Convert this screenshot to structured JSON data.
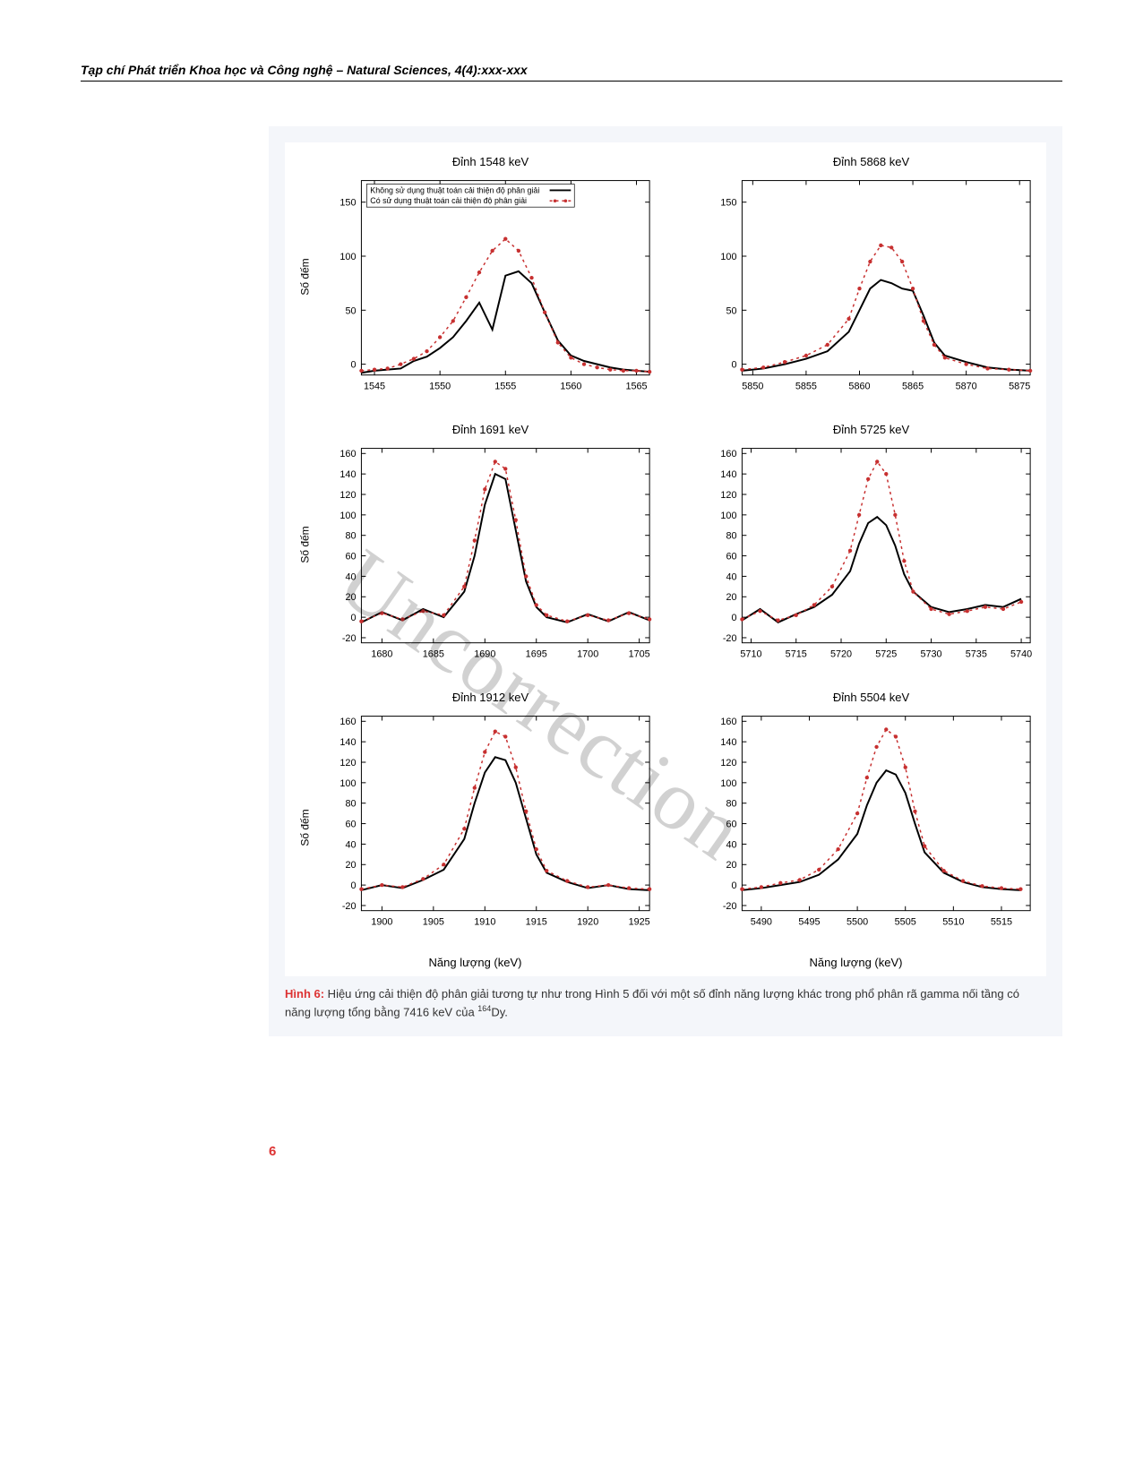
{
  "journal_header": "Tạp chí Phát triển Khoa học và Công nghệ – Natural Sciences, 4(4):xxx-xxx",
  "watermark": "Uncorrection",
  "page_number": "6",
  "shared": {
    "ylabel": "Số đếm",
    "xlabel": "Năng lượng (keV)",
    "line_solid_color": "#000000",
    "line_dashed_color": "#c73030",
    "background_color": "#ffffff",
    "figure_bg": "#f4f6fa",
    "solid_stroke_width": 2,
    "dashed_stroke_width": 1.5,
    "dash_pattern": "3,4",
    "marker_size": 2.2,
    "tick_fontsize": 11,
    "label_fontsize": 13,
    "title_fontsize": 13,
    "legend": {
      "line1": "Không sử dụng thuật toán cải thiện độ phân giải",
      "line2": "Có sử dụng thuật toán cải thiện độ phân giải"
    }
  },
  "subplots": [
    {
      "title": "Đỉnh 1548 keV",
      "show_legend": true,
      "show_ylabel": true,
      "show_xlabel": false,
      "xlim": [
        1544,
        1566
      ],
      "ylim": [
        -10,
        170
      ],
      "yticks": [
        0,
        50,
        100,
        150
      ],
      "xticks": [
        1545,
        1550,
        1555,
        1560,
        1565
      ],
      "solid": {
        "x": [
          1544,
          1545,
          1546,
          1547,
          1548,
          1549,
          1550,
          1551,
          1552,
          1553,
          1554,
          1555,
          1556,
          1557,
          1558,
          1559,
          1560,
          1561,
          1562,
          1563,
          1564,
          1565,
          1566
        ],
        "y": [
          -8,
          -6,
          -5,
          -4,
          3,
          7,
          15,
          25,
          40,
          57,
          32,
          82,
          86,
          75,
          48,
          22,
          8,
          3,
          0,
          -3,
          -5,
          -6,
          -7
        ]
      },
      "dashed": {
        "x": [
          1544,
          1545,
          1546,
          1547,
          1548,
          1549,
          1550,
          1551,
          1552,
          1553,
          1554,
          1555,
          1556,
          1557,
          1558,
          1559,
          1560,
          1561,
          1562,
          1563,
          1564,
          1565,
          1566
        ],
        "y": [
          -6,
          -5,
          -4,
          0,
          5,
          12,
          25,
          40,
          62,
          85,
          105,
          116,
          105,
          80,
          48,
          20,
          6,
          0,
          -3,
          -5,
          -6,
          -6,
          -7
        ]
      }
    },
    {
      "title": "Đỉnh 5868 keV",
      "show_legend": false,
      "show_ylabel": false,
      "show_xlabel": false,
      "xlim": [
        5849,
        5876
      ],
      "ylim": [
        -10,
        170
      ],
      "yticks": [
        0,
        50,
        100,
        150
      ],
      "xticks": [
        5850,
        5855,
        5860,
        5865,
        5870,
        5875
      ],
      "solid": {
        "x": [
          5849,
          5851,
          5853,
          5855,
          5857,
          5859,
          5860,
          5861,
          5862,
          5863,
          5864,
          5865,
          5866,
          5867,
          5868,
          5870,
          5872,
          5874,
          5876
        ],
        "y": [
          -6,
          -4,
          0,
          5,
          12,
          30,
          50,
          70,
          78,
          75,
          70,
          68,
          45,
          20,
          8,
          2,
          -3,
          -5,
          -6
        ]
      },
      "dashed": {
        "x": [
          5849,
          5851,
          5853,
          5855,
          5857,
          5859,
          5860,
          5861,
          5862,
          5863,
          5864,
          5865,
          5866,
          5867,
          5868,
          5870,
          5872,
          5874,
          5876
        ],
        "y": [
          -5,
          -3,
          2,
          8,
          18,
          42,
          70,
          95,
          110,
          108,
          95,
          70,
          40,
          18,
          6,
          0,
          -4,
          -5,
          -6
        ]
      }
    },
    {
      "title": "Đỉnh 1691 keV",
      "show_legend": false,
      "show_ylabel": true,
      "show_xlabel": false,
      "xlim": [
        1678,
        1706
      ],
      "ylim": [
        -25,
        165
      ],
      "yticks": [
        -20,
        0,
        20,
        40,
        60,
        80,
        100,
        120,
        140,
        160
      ],
      "xticks": [
        1680,
        1685,
        1690,
        1695,
        1700,
        1705
      ],
      "solid": {
        "x": [
          1678,
          1680,
          1682,
          1684,
          1686,
          1688,
          1689,
          1690,
          1691,
          1692,
          1693,
          1694,
          1695,
          1696,
          1698,
          1700,
          1702,
          1704,
          1706
        ],
        "y": [
          -5,
          5,
          -3,
          8,
          0,
          25,
          60,
          110,
          140,
          135,
          85,
          35,
          10,
          0,
          -5,
          3,
          -4,
          5,
          -3
        ]
      },
      "dashed": {
        "x": [
          1678,
          1680,
          1682,
          1684,
          1686,
          1688,
          1689,
          1690,
          1691,
          1692,
          1693,
          1694,
          1695,
          1696,
          1698,
          1700,
          1702,
          1704,
          1706
        ],
        "y": [
          -4,
          4,
          -2,
          6,
          2,
          30,
          75,
          125,
          152,
          145,
          95,
          40,
          12,
          2,
          -4,
          2,
          -3,
          4,
          -2
        ]
      }
    },
    {
      "title": "Đỉnh 5725 keV",
      "show_legend": false,
      "show_ylabel": false,
      "show_xlabel": false,
      "xlim": [
        5709,
        5741
      ],
      "ylim": [
        -25,
        165
      ],
      "yticks": [
        -20,
        0,
        20,
        40,
        60,
        80,
        100,
        120,
        140,
        160
      ],
      "xticks": [
        5710,
        5715,
        5720,
        5725,
        5730,
        5735,
        5740
      ],
      "solid": {
        "x": [
          5709,
          5711,
          5713,
          5715,
          5717,
          5719,
          5721,
          5722,
          5723,
          5724,
          5725,
          5726,
          5727,
          5728,
          5730,
          5732,
          5734,
          5736,
          5738,
          5740
        ],
        "y": [
          -3,
          8,
          -5,
          3,
          10,
          22,
          45,
          72,
          92,
          98,
          90,
          70,
          42,
          25,
          10,
          5,
          8,
          12,
          10,
          18
        ]
      },
      "dashed": {
        "x": [
          5709,
          5711,
          5713,
          5715,
          5717,
          5719,
          5721,
          5722,
          5723,
          5724,
          5725,
          5726,
          5727,
          5728,
          5730,
          5732,
          5734,
          5736,
          5738,
          5740
        ],
        "y": [
          -2,
          6,
          -3,
          2,
          12,
          30,
          65,
          100,
          135,
          152,
          140,
          100,
          55,
          25,
          8,
          3,
          6,
          10,
          8,
          15
        ]
      }
    },
    {
      "title": "Đỉnh 1912 keV",
      "show_legend": false,
      "show_ylabel": true,
      "show_xlabel": true,
      "xlim": [
        1898,
        1926
      ],
      "ylim": [
        -25,
        165
      ],
      "yticks": [
        -20,
        0,
        20,
        40,
        60,
        80,
        100,
        120,
        140,
        160
      ],
      "xticks": [
        1900,
        1905,
        1910,
        1915,
        1920,
        1925
      ],
      "solid": {
        "x": [
          1898,
          1900,
          1902,
          1904,
          1906,
          1908,
          1909,
          1910,
          1911,
          1912,
          1913,
          1914,
          1915,
          1916,
          1918,
          1920,
          1922,
          1924,
          1926
        ],
        "y": [
          -5,
          0,
          -3,
          5,
          15,
          45,
          80,
          110,
          125,
          122,
          100,
          65,
          30,
          12,
          3,
          -3,
          0,
          -4,
          -5
        ]
      },
      "dashed": {
        "x": [
          1898,
          1900,
          1902,
          1904,
          1906,
          1908,
          1909,
          1910,
          1911,
          1912,
          1913,
          1914,
          1915,
          1916,
          1918,
          1920,
          1922,
          1924,
          1926
        ],
        "y": [
          -4,
          0,
          -2,
          6,
          20,
          55,
          95,
          130,
          150,
          145,
          115,
          72,
          35,
          14,
          4,
          -2,
          0,
          -3,
          -4
        ]
      }
    },
    {
      "title": "Đỉnh 5504 keV",
      "show_legend": false,
      "show_ylabel": false,
      "show_xlabel": true,
      "xlim": [
        5488,
        5518
      ],
      "ylim": [
        -25,
        165
      ],
      "yticks": [
        -20,
        0,
        20,
        40,
        60,
        80,
        100,
        120,
        140,
        160
      ],
      "xticks": [
        5490,
        5495,
        5500,
        5505,
        5510,
        5515
      ],
      "solid": {
        "x": [
          5488,
          5490,
          5492,
          5494,
          5496,
          5498,
          5500,
          5501,
          5502,
          5503,
          5504,
          5505,
          5506,
          5507,
          5509,
          5511,
          5513,
          5515,
          5517
        ],
        "y": [
          -5,
          -3,
          0,
          3,
          10,
          25,
          50,
          78,
          100,
          112,
          108,
          90,
          60,
          32,
          12,
          3,
          -2,
          -4,
          -5
        ]
      },
      "dashed": {
        "x": [
          5488,
          5490,
          5492,
          5494,
          5496,
          5498,
          5500,
          5501,
          5502,
          5503,
          5504,
          5505,
          5506,
          5507,
          5509,
          5511,
          5513,
          5515,
          5517
        ],
        "y": [
          -4,
          -2,
          2,
          5,
          15,
          35,
          70,
          105,
          135,
          152,
          145,
          115,
          72,
          38,
          14,
          4,
          -1,
          -3,
          -4
        ]
      }
    }
  ],
  "caption": {
    "label": "Hình 6:",
    "text_before_sup": " Hiệu ứng cải thiện độ phân giải tương tự như trong Hình 5 đối với một số đỉnh năng lượng khác trong phổ phân rã gamma nối tầng có năng lượng tổng bằng 7416 keV của ",
    "sup": "164",
    "text_after_sup": "Dy."
  }
}
